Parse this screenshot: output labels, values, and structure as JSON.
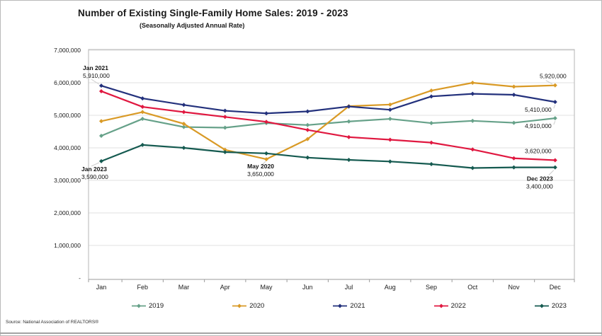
{
  "header": {
    "title": "Number of Existing Single-Family Home Sales: 2019 - 2023",
    "subtitle": "(Seasonally Adjusted Annual Rate)"
  },
  "source_note": "Source: National Association of REALTORS®",
  "chart_data": {
    "type": "line",
    "title": "Number of Existing Single-Family Home Sales: 2019 - 2023",
    "subtitle": "(Seasonally Adjusted Annual Rate)",
    "categories": [
      "Jan",
      "Feb",
      "Mar",
      "Apr",
      "May",
      "Jun",
      "Jul",
      "Aug",
      "Sep",
      "Oct",
      "Nov",
      "Dec"
    ],
    "ylim": [
      0,
      7000000
    ],
    "ytick_interval": 1000000,
    "ytick_labels": [
      "-",
      "1,000,000",
      "2,000,000",
      "3,000,000",
      "4,000,000",
      "5,000,000",
      "6,000,000",
      "7,000,000"
    ],
    "grid": "horizontal",
    "legend_position": "bottom",
    "series": [
      {
        "name": "2019",
        "color": "#66a189",
        "values": [
          4370000,
          4890000,
          4640000,
          4620000,
          4760000,
          4700000,
          4810000,
          4890000,
          4760000,
          4830000,
          4770000,
          4910000
        ]
      },
      {
        "name": "2020",
        "color": "#d99a26",
        "values": [
          4820000,
          5100000,
          4740000,
          3940000,
          3650000,
          4270000,
          5280000,
          5330000,
          5760000,
          6000000,
          5880000,
          5920000
        ]
      },
      {
        "name": "2021",
        "color": "#23317c",
        "values": [
          5910000,
          5520000,
          5320000,
          5140000,
          5060000,
          5120000,
          5270000,
          5170000,
          5580000,
          5660000,
          5630000,
          5410000
        ]
      },
      {
        "name": "2022",
        "color": "#e01840",
        "values": [
          5740000,
          5260000,
          5100000,
          4950000,
          4800000,
          4550000,
          4330000,
          4250000,
          4160000,
          3950000,
          3680000,
          3620000
        ]
      },
      {
        "name": "2023",
        "color": "#155a50",
        "values": [
          3590000,
          4090000,
          4000000,
          3870000,
          3830000,
          3700000,
          3630000,
          3580000,
          3500000,
          3380000,
          3400000,
          3400000
        ]
      }
    ],
    "annotations": [
      {
        "series": "2021",
        "month": "Jan",
        "lines": [
          "Jan 2021",
          "5,910,000"
        ],
        "bold_first": true,
        "placement": "above-left"
      },
      {
        "series": "2023",
        "month": "Jan",
        "lines": [
          "Jan 2023",
          "3,590,000"
        ],
        "bold_first": true,
        "placement": "below-left"
      },
      {
        "series": "2020",
        "month": "May",
        "lines": [
          "May 2020",
          "3,650,000"
        ],
        "bold_first": true,
        "placement": "below-center"
      },
      {
        "series": "2020",
        "month": "Dec",
        "lines": [
          "5,920,000"
        ],
        "bold_first": false,
        "placement": "above-right"
      },
      {
        "series": "2021",
        "month": "Dec",
        "lines": [
          "5,410,000"
        ],
        "bold_first": false,
        "placement": "below-right"
      },
      {
        "series": "2019",
        "month": "Dec",
        "lines": [
          "4,910,000"
        ],
        "bold_first": false,
        "placement": "below-right"
      },
      {
        "series": "2022",
        "month": "Dec",
        "lines": [
          "3,620,000"
        ],
        "bold_first": false,
        "placement": "above-end"
      },
      {
        "series": "2023",
        "month": "Dec",
        "lines": [
          "Dec 2023",
          "3,400,000"
        ],
        "bold_first": true,
        "placement": "below-end"
      }
    ]
  }
}
